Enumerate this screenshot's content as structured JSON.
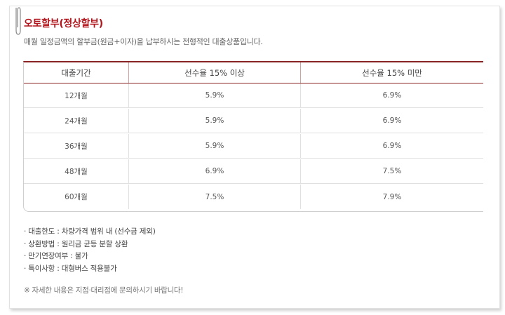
{
  "header": {
    "title": "오토할부(정상할부)",
    "description": "매월 일정금액의 할부금(원금+이자)을 납부하시는 전형적인 대출상품입니다."
  },
  "table": {
    "columns": [
      "대출기간",
      "선수율 15% 이상",
      "선수율 15% 미만"
    ],
    "rows": [
      {
        "period": "12개월",
        "rate_high": "5.9%",
        "rate_low": "6.9%"
      },
      {
        "period": "24개월",
        "rate_high": "5.9%",
        "rate_low": "6.9%"
      },
      {
        "period": "36개월",
        "rate_high": "5.9%",
        "rate_low": "6.9%"
      },
      {
        "period": "48개월",
        "rate_high": "6.9%",
        "rate_low": "7.5%"
      },
      {
        "period": "60개월",
        "rate_high": "7.5%",
        "rate_low": "7.9%"
      }
    ]
  },
  "notes": [
    "· 대출한도 : 차량가격 범위 내 (선수금 제외)",
    "· 상환방법 : 원리금 균등 분할 상환",
    "· 만기연장여부 : 불가",
    "· 특이사항 : 대형버스 적용불가"
  ],
  "footer_note": "※ 자세한 내용은 지점·대리점에 문의하시기 바랍니다!",
  "colors": {
    "accent": "#b2141c",
    "table_top_border": "#8a2424"
  },
  "icons": [
    "paperclip-icon"
  ]
}
